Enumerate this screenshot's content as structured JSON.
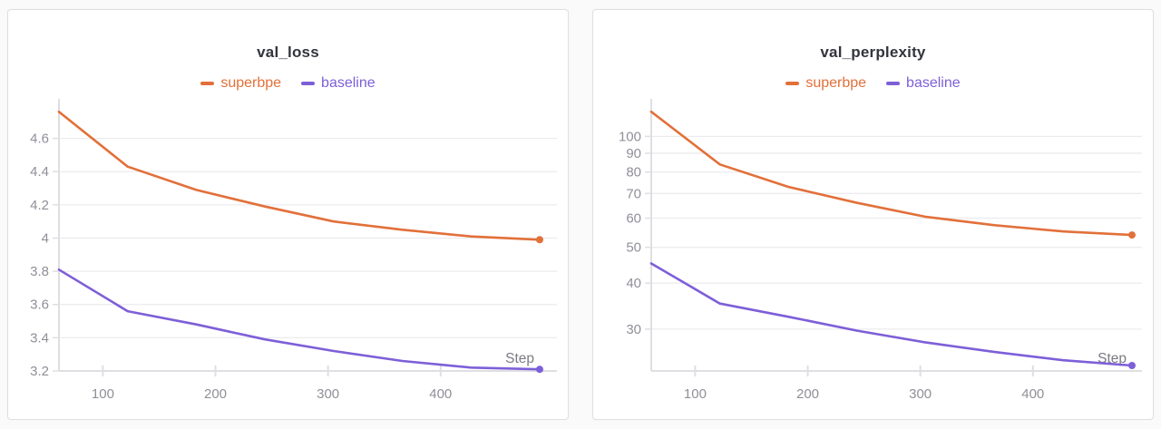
{
  "chart_data": [
    {
      "type": "line",
      "title": "val_loss",
      "xlabel": "Step",
      "ylabel": "",
      "x": [
        61,
        122,
        183,
        244,
        305,
        366,
        427,
        488
      ],
      "series": [
        {
          "name": "superbpe",
          "color": "#e2703a",
          "values": [
            4.76,
            4.43,
            4.29,
            4.19,
            4.1,
            4.05,
            4.01,
            3.99
          ]
        },
        {
          "name": "baseline",
          "color": "#7d5fd8",
          "values": [
            3.81,
            3.56,
            3.48,
            3.39,
            3.32,
            3.26,
            3.22,
            3.21
          ]
        }
      ],
      "xticks": [
        100,
        200,
        300,
        400
      ],
      "yticks": [
        3.2,
        3.4,
        3.6,
        3.8,
        4,
        4.2,
        4.4,
        4.6
      ],
      "yscale": "linear",
      "ylim": [
        3.2,
        4.86
      ],
      "xlim": [
        61,
        488
      ],
      "grid": true,
      "legend_position": "top",
      "end_point_marker": true
    },
    {
      "type": "line",
      "title": "val_perplexity",
      "xlabel": "Step",
      "ylabel": "",
      "x": [
        61,
        122,
        183,
        244,
        305,
        366,
        427,
        488
      ],
      "series": [
        {
          "name": "superbpe",
          "color": "#e2703a",
          "values": [
            116.6,
            83.9,
            72.9,
            66.0,
            60.5,
            57.4,
            55.2,
            54.0
          ]
        },
        {
          "name": "baseline",
          "color": "#7d5fd8",
          "values": [
            45.2,
            35.2,
            32.4,
            29.7,
            27.6,
            26.0,
            24.7,
            23.9
          ]
        }
      ],
      "xticks": [
        100,
        200,
        300,
        400
      ],
      "yticks": [
        30,
        40,
        50,
        60,
        70,
        80,
        90,
        100
      ],
      "yscale": "log",
      "ylim": [
        23.1,
        129.3
      ],
      "xlim": [
        61,
        488
      ],
      "grid": true,
      "legend_position": "top",
      "end_point_marker": true
    }
  ],
  "theme": {
    "page_background": "#fafafa",
    "panel_background": "#ffffff",
    "panel_border": "#dfdfe3",
    "grid_color": "#ececef",
    "axis_color": "#dfdfe3",
    "tick_label_color": "#8f8f98",
    "title_color": "#33343d",
    "step_label_color": "#7b7b83"
  }
}
